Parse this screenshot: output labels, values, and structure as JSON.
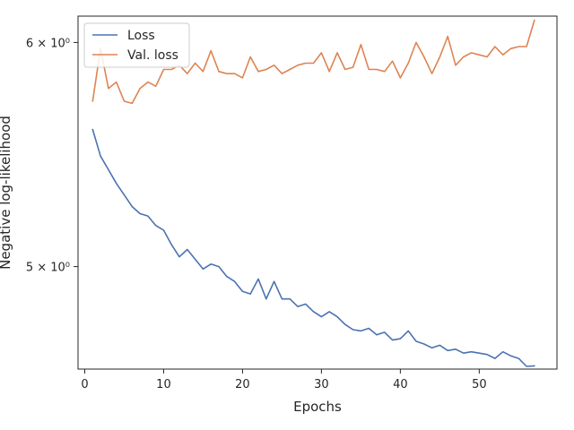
{
  "chart_data": {
    "type": "line",
    "title": "",
    "xlabel": "Epochs",
    "ylabel": "Negative log-likelihood",
    "yscale": "log",
    "xlim": [
      -0.85,
      59.85
    ],
    "ylim": [
      4.6,
      6.13
    ],
    "xticks": [
      0,
      10,
      20,
      30,
      40,
      50
    ],
    "xtick_labels": [
      "0",
      "10",
      "20",
      "30",
      "40",
      "50"
    ],
    "yticks": [
      5,
      6
    ],
    "ytick_labels": [
      "5 × 10⁰",
      "6 × 10⁰"
    ],
    "grid": false,
    "legend": {
      "position": "top-left"
    },
    "x": [
      1,
      2,
      3,
      4,
      5,
      6,
      7,
      8,
      9,
      10,
      11,
      12,
      13,
      14,
      15,
      16,
      17,
      18,
      19,
      20,
      21,
      22,
      23,
      24,
      25,
      26,
      27,
      28,
      29,
      30,
      31,
      32,
      33,
      34,
      35,
      36,
      37,
      38,
      39,
      40,
      41,
      42,
      43,
      44,
      45,
      46,
      47,
      48,
      49,
      50,
      51,
      52,
      53,
      54,
      55,
      56,
      57
    ],
    "series": [
      {
        "name": "Loss",
        "color": "#4c72b0",
        "values": [
          5.59,
          5.47,
          5.41,
          5.35,
          5.3,
          5.25,
          5.22,
          5.21,
          5.17,
          5.15,
          5.09,
          5.04,
          5.07,
          5.03,
          4.99,
          5.01,
          5.0,
          4.96,
          4.94,
          4.9,
          4.89,
          4.95,
          4.87,
          4.94,
          4.87,
          4.87,
          4.84,
          4.85,
          4.82,
          4.8,
          4.82,
          4.8,
          4.77,
          4.75,
          4.745,
          4.755,
          4.73,
          4.74,
          4.71,
          4.715,
          4.745,
          4.705,
          4.695,
          4.68,
          4.69,
          4.67,
          4.675,
          4.66,
          4.665,
          4.66,
          4.655,
          4.64,
          4.665,
          4.65,
          4.64,
          4.61,
          4.612
        ]
      },
      {
        "name": "Val. loss",
        "color": "#dd8452",
        "values": [
          5.72,
          5.97,
          5.78,
          5.81,
          5.72,
          5.71,
          5.78,
          5.81,
          5.79,
          5.87,
          5.87,
          5.89,
          5.85,
          5.9,
          5.86,
          5.96,
          5.86,
          5.85,
          5.85,
          5.83,
          5.93,
          5.86,
          5.87,
          5.89,
          5.85,
          5.87,
          5.89,
          5.9,
          5.9,
          5.95,
          5.86,
          5.95,
          5.87,
          5.88,
          5.99,
          5.87,
          5.87,
          5.86,
          5.91,
          5.83,
          5.9,
          6.0,
          5.93,
          5.85,
          5.93,
          6.03,
          5.89,
          5.93,
          5.95,
          5.94,
          5.93,
          5.98,
          5.94,
          5.97,
          5.98,
          5.98,
          6.11
        ]
      }
    ]
  }
}
